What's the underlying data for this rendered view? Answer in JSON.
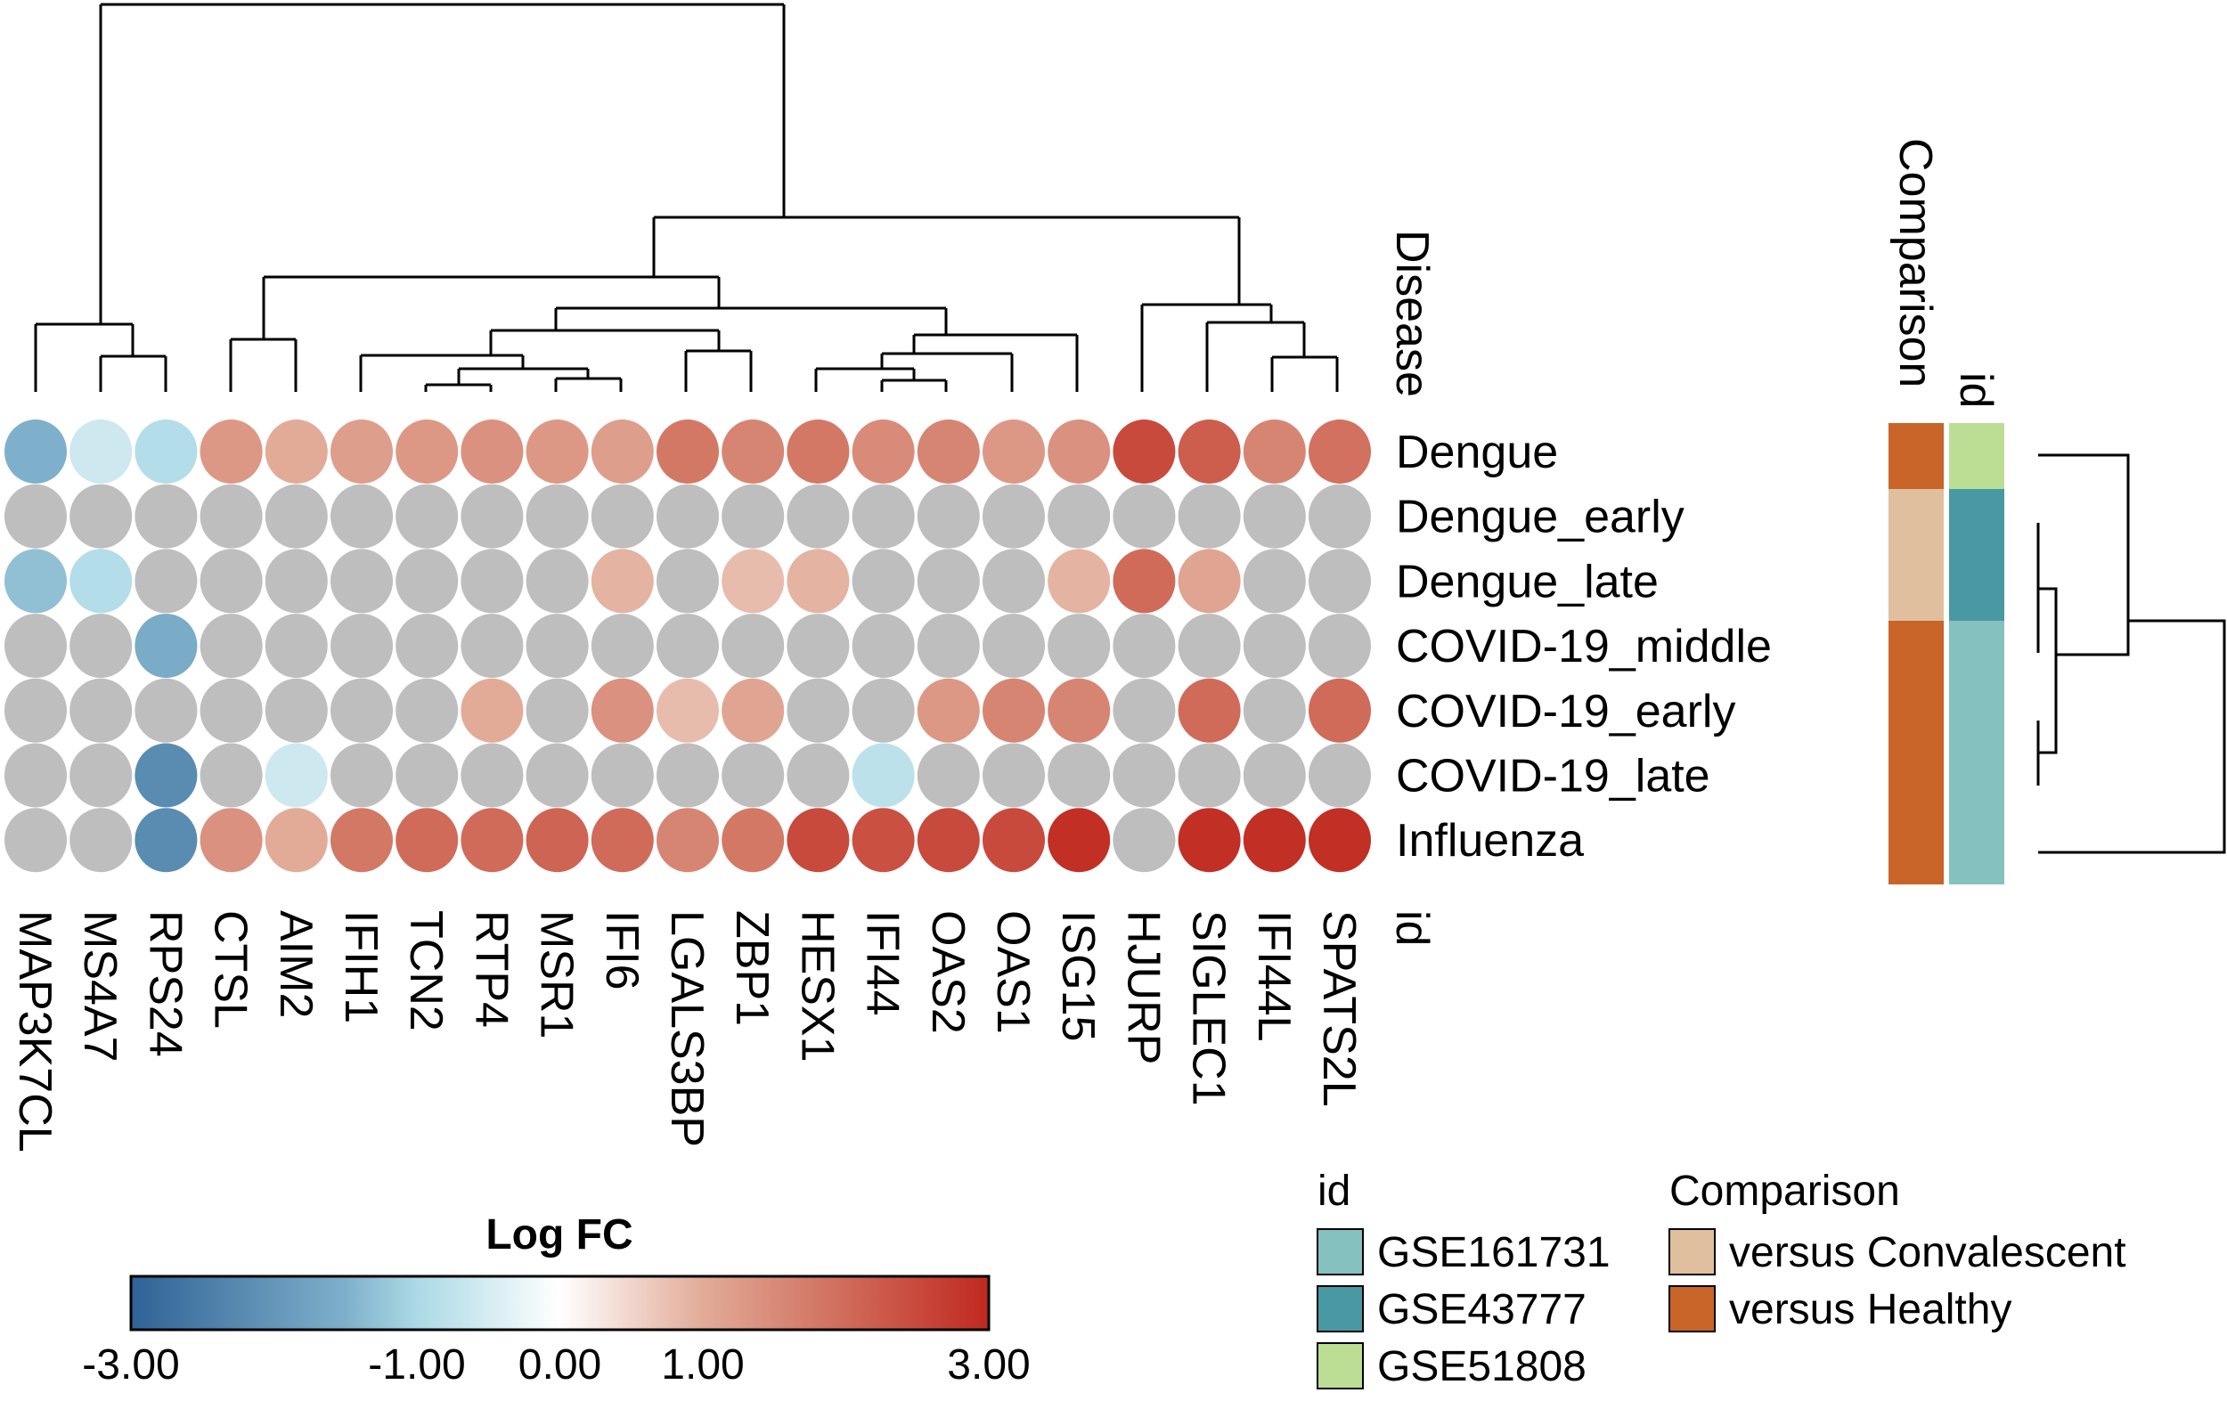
{
  "chart_data": {
    "type": "heatmap",
    "title": "Log FC",
    "row_axis_title": "Disease",
    "column_axis_title": "id",
    "rows": [
      "Dengue",
      "Dengue_early",
      "Dengue_late",
      "COVID-19_middle",
      "COVID-19_early",
      "COVID-19_late",
      "Influenza"
    ],
    "columns": [
      "MAP3K7CL",
      "MS4A7",
      "RPS24",
      "CTSL",
      "AIM2",
      "IFIH1",
      "TCN2",
      "RTP4",
      "MSR1",
      "IFI6",
      "LGALS3BP",
      "ZBP1",
      "HESX1",
      "IFI44",
      "OAS2",
      "OAS1",
      "ISG15",
      "HJURP",
      "SIGLEC1",
      "IFI44L",
      "SPATS2L"
    ],
    "values": [
      [
        -1.5,
        -0.6,
        -0.9,
        1.3,
        1.0,
        1.2,
        1.3,
        1.4,
        1.3,
        1.2,
        1.8,
        1.6,
        1.8,
        1.5,
        1.6,
        1.3,
        1.4,
        2.5,
        2.2,
        1.6,
        1.9
      ],
      [
        null,
        null,
        null,
        null,
        null,
        null,
        null,
        null,
        null,
        null,
        null,
        null,
        null,
        null,
        null,
        null,
        null,
        null,
        null,
        null,
        null
      ],
      [
        -1.3,
        -0.9,
        null,
        null,
        null,
        null,
        null,
        null,
        null,
        0.9,
        null,
        0.8,
        0.9,
        null,
        null,
        null,
        0.9,
        2.0,
        1.1,
        null,
        null
      ],
      [
        null,
        null,
        -1.6,
        null,
        null,
        null,
        null,
        null,
        null,
        null,
        null,
        null,
        null,
        null,
        null,
        null,
        null,
        null,
        null,
        null,
        null
      ],
      [
        null,
        null,
        null,
        null,
        null,
        null,
        null,
        1.0,
        null,
        1.4,
        0.8,
        1.1,
        null,
        null,
        1.3,
        1.6,
        1.6,
        null,
        2.0,
        null,
        2.0
      ],
      [
        null,
        null,
        -2.2,
        null,
        -0.6,
        null,
        null,
        null,
        null,
        null,
        null,
        null,
        null,
        -0.8,
        null,
        null,
        null,
        null,
        null,
        null,
        null
      ],
      [
        null,
        null,
        -2.2,
        1.4,
        1.0,
        1.8,
        2.0,
        2.0,
        2.1,
        2.0,
        1.6,
        1.8,
        2.5,
        2.4,
        2.5,
        2.5,
        2.9,
        null,
        2.9,
        2.9,
        2.9
      ]
    ],
    "na_color": "#bebebe",
    "value_range": [
      -3,
      3
    ],
    "colorscale": [
      {
        "value": -3,
        "color": "#2f6296"
      },
      {
        "value": -1.5,
        "color": "#7fb0cb"
      },
      {
        "value": -1,
        "color": "#abd9e5"
      },
      {
        "value": 0,
        "color": "#ffffff"
      },
      {
        "value": 1,
        "color": "#e2ab98"
      },
      {
        "value": 2,
        "color": "#d06b5a"
      },
      {
        "value": 3,
        "color": "#c0281f"
      }
    ],
    "colorbar_ticks": [
      {
        "value": -3,
        "label": "-3.00"
      },
      {
        "value": -1,
        "label": "-1.00"
      },
      {
        "value": 0,
        "label": "0.00"
      },
      {
        "value": 1,
        "label": "1.00"
      },
      {
        "value": 3,
        "label": "3.00"
      }
    ],
    "row_annotations": {
      "tracks": [
        "Comparison",
        "id"
      ],
      "Comparison": [
        "versus Healthy",
        "versus Convalescent",
        "versus Convalescent",
        "versus Healthy",
        "versus Healthy",
        "versus Healthy",
        "versus Healthy"
      ],
      "id": [
        "GSE51808",
        "GSE43777",
        "GSE43777",
        "GSE161731",
        "GSE161731",
        "GSE161731",
        "GSE161731"
      ]
    },
    "legends": {
      "id": {
        "title": "id",
        "items": [
          {
            "label": "GSE161731",
            "color": "#85c1bf"
          },
          {
            "label": "GSE43777",
            "color": "#4899a3"
          },
          {
            "label": "GSE51808",
            "color": "#bcdd94"
          }
        ]
      },
      "Comparison": {
        "title": "Comparison",
        "items": [
          {
            "label": "versus Convalescent",
            "color": "#e0bf9e"
          },
          {
            "label": "versus Healthy",
            "color": "#c96428"
          }
        ]
      }
    }
  }
}
